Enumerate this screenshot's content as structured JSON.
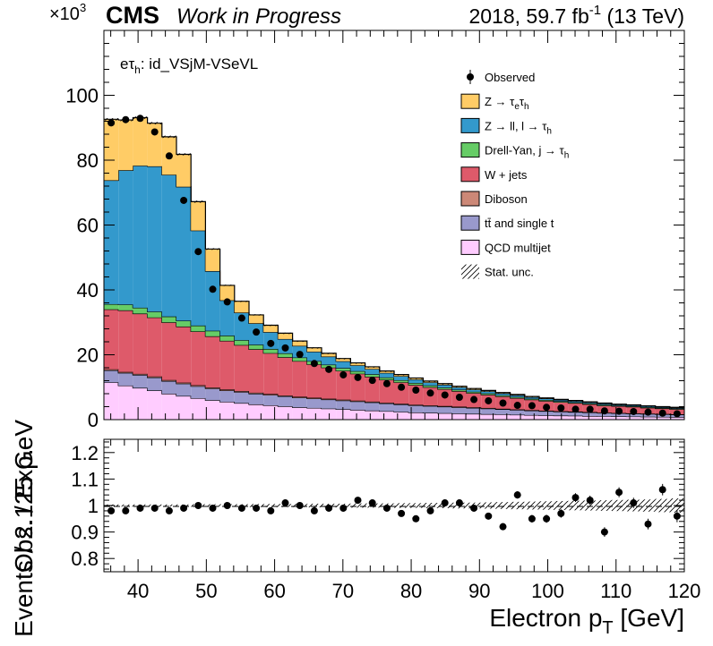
{
  "header": {
    "exponent_prefix": "×10",
    "exponent_power": "3",
    "experiment": "CMS",
    "status": "Work in Progress",
    "lumi_pre": "2018, 59.7 fb",
    "lumi_sup": "-1",
    "lumi_post": " (13 TeV)"
  },
  "channel": {
    "main": "eτ",
    "sub": "h",
    "rest": ": id_VSjM-VSeVL"
  },
  "colors": {
    "ztt": "#ffcc66",
    "zll": "#3399cc",
    "dy_jt": "#66cc66",
    "wjets": "#de5a6a",
    "diboson": "#cc8877",
    "top": "#9999cc",
    "qcd": "#ffccff"
  },
  "legend": [
    {
      "key": "observed",
      "label": "Observed"
    },
    {
      "key": "ztt",
      "label": "Z → τeτh"
    },
    {
      "key": "zll",
      "label": "Z → ll, l → τh"
    },
    {
      "key": "dy_jt",
      "label": "Drell-Yan, j → τh"
    },
    {
      "key": "wjets",
      "label": "W + jets"
    },
    {
      "key": "diboson",
      "label": "Diboson"
    },
    {
      "key": "top",
      "label": "tt̄ and single t"
    },
    {
      "key": "qcd",
      "label": "QCD multijet"
    },
    {
      "key": "stat",
      "label": "Stat. unc."
    }
  ],
  "chart_data": [
    {
      "type": "bar",
      "stacked": true,
      "ylabel": "Events / 2.125 GeV",
      "ylim": [
        0,
        120
      ],
      "y_unit_multiplier": "×10³",
      "y_ticks": [
        0,
        20,
        40,
        60,
        80,
        100
      ],
      "x_edges": [
        35,
        37.125,
        39.25,
        41.375,
        43.5,
        45.625,
        47.75,
        49.875,
        52,
        54.125,
        56.25,
        58.375,
        60.5,
        62.625,
        64.75,
        66.875,
        69,
        71.125,
        73.25,
        75.375,
        77.5,
        79.625,
        81.75,
        83.875,
        86,
        88.125,
        90.25,
        92.375,
        94.5,
        96.625,
        98.75,
        100.875,
        103,
        105.125,
        107.25,
        109.375,
        111.5,
        113.625,
        115.75,
        117.875,
        120
      ],
      "series": [
        {
          "key": "qcd",
          "name": "QCD multijet",
          "values": [
            11.5,
            10.5,
            9.8,
            9.0,
            8.0,
            7.3,
            6.6,
            6.0,
            5.5,
            5.1,
            4.7,
            4.4,
            4.1,
            3.8,
            3.6,
            3.4,
            3.2,
            3.0,
            2.8,
            2.6,
            2.4,
            2.2,
            2.1,
            2.0,
            1.9,
            1.8,
            1.7,
            1.6,
            1.5,
            1.4,
            1.3,
            1.25,
            1.2,
            1.1,
            1.05,
            1.0,
            0.95,
            0.9,
            0.85,
            0.8
          ]
        },
        {
          "key": "top",
          "name": "tt̄ and single t",
          "values": [
            3.7,
            3.9,
            4.0,
            4.0,
            3.9,
            3.8,
            3.7,
            3.6,
            3.5,
            3.4,
            3.3,
            3.2,
            3.1,
            3.0,
            2.9,
            2.8,
            2.7,
            2.6,
            2.5,
            2.4,
            2.3,
            2.2,
            2.1,
            2.0,
            1.9,
            1.8,
            1.7,
            1.6,
            1.5,
            1.4,
            1.3,
            1.2,
            1.15,
            1.1,
            1.0,
            0.95,
            0.9,
            0.85,
            0.8,
            0.75
          ]
        },
        {
          "key": "diboson",
          "name": "Diboson",
          "values": [
            0.3,
            0.3,
            0.3,
            0.3,
            0.3,
            0.3,
            0.3,
            0.3,
            0.3,
            0.3,
            0.3,
            0.3,
            0.25,
            0.25,
            0.25,
            0.25,
            0.25,
            0.25,
            0.25,
            0.2,
            0.2,
            0.2,
            0.2,
            0.2,
            0.2,
            0.2,
            0.2,
            0.15,
            0.15,
            0.15,
            0.15,
            0.15,
            0.15,
            0.15,
            0.1,
            0.1,
            0.1,
            0.1,
            0.1,
            0.1
          ]
        },
        {
          "key": "wjets",
          "name": "W + jets",
          "values": [
            18.5,
            19.0,
            18.6,
            18.2,
            17.8,
            17.3,
            16.6,
            15.8,
            15.0,
            14.2,
            13.4,
            12.6,
            11.8,
            11.0,
            10.3,
            9.6,
            8.9,
            8.3,
            7.7,
            7.1,
            6.6,
            6.1,
            5.6,
            5.2,
            4.8,
            4.4,
            4.1,
            3.8,
            3.5,
            3.2,
            3.0,
            2.8,
            2.6,
            2.4,
            2.2,
            2.1,
            2.0,
            1.8,
            1.7,
            1.6
          ]
        },
        {
          "key": "dy_jt",
          "name": "Drell-Yan, j → τh",
          "values": [
            1.6,
            1.8,
            1.8,
            1.8,
            1.8,
            1.8,
            1.8,
            1.7,
            1.6,
            1.5,
            1.4,
            1.3,
            1.2,
            1.1,
            1.0,
            0.9,
            0.85,
            0.8,
            0.75,
            0.7,
            0.65,
            0.6,
            0.55,
            0.5,
            0.45,
            0.4,
            0.4,
            0.35,
            0.35,
            0.3,
            0.3,
            0.3,
            0.25,
            0.25,
            0.25,
            0.2,
            0.2,
            0.2,
            0.2,
            0.2
          ]
        },
        {
          "key": "zll",
          "name": "Z → ll, l → τh",
          "values": [
            38.2,
            41.4,
            43.8,
            44.8,
            43.7,
            41.3,
            29.3,
            18.4,
            10.9,
            8.5,
            6.6,
            5.2,
            4.4,
            3.6,
            2.9,
            2.5,
            2.1,
            1.8,
            1.6,
            1.4,
            1.25,
            1.1,
            0.95,
            0.85,
            0.75,
            0.7,
            0.65,
            0.6,
            0.55,
            0.5,
            0.45,
            0.4,
            0.4,
            0.35,
            0.35,
            0.3,
            0.3,
            0.3,
            0.25,
            0.25
          ]
        },
        {
          "key": "ztt",
          "name": "Z → τeτh",
          "values": [
            18.8,
            15.5,
            14.8,
            13.3,
            11.7,
            10.0,
            8.9,
            6.8,
            4.6,
            3.5,
            2.6,
            2.1,
            1.8,
            1.5,
            1.2,
            1.0,
            0.85,
            0.75,
            0.7,
            0.6,
            0.5,
            0.45,
            0.4,
            0.35,
            0.3,
            0.3,
            0.25,
            0.25,
            0.2,
            0.2,
            0.2,
            0.15,
            0.15,
            0.15,
            0.15,
            0.1,
            0.1,
            0.1,
            0.1,
            0.1
          ]
        }
      ],
      "observed": [
        91.5,
        92.5,
        92.9,
        88.7,
        81.3,
        67.6,
        51.8,
        40.2,
        36.3,
        31.3,
        27.0,
        23.5,
        22.1,
        20.1,
        17.3,
        15.5,
        13.8,
        13.0,
        12.1,
        11.1,
        10.0,
        9.1,
        8.2,
        7.6,
        6.9,
        6.2,
        5.8,
        5.1,
        4.4,
        4.3,
        3.8,
        3.6,
        3.2,
        3.2,
        2.7,
        2.6,
        2.5,
        2.3,
        2.0,
        1.8
      ]
    },
    {
      "type": "scatter",
      "xlabel": "Electron pT [GeV]",
      "ylabel": "Obs. / Exp.",
      "xlim": [
        35,
        120
      ],
      "ylim": [
        0.75,
        1.25
      ],
      "x_ticks": [
        40,
        50,
        60,
        70,
        80,
        90,
        100,
        110,
        120
      ],
      "y_ticks": [
        0.8,
        0.9,
        1.0,
        1.1,
        1.2
      ],
      "ratio": [
        0.98,
        0.98,
        0.99,
        0.99,
        0.98,
        0.99,
        1.0,
        0.99,
        1.0,
        0.99,
        0.99,
        0.98,
        1.01,
        1.0,
        0.98,
        0.99,
        0.99,
        1.02,
        1.01,
        0.99,
        0.97,
        0.95,
        0.98,
        1.01,
        1.01,
        0.99,
        0.96,
        0.92,
        1.04,
        0.95,
        0.95,
        0.97,
        1.03,
        1.02,
        0.9,
        1.05,
        1.01,
        0.93,
        1.06,
        0.96
      ],
      "stat_unc": [
        0.004,
        0.004,
        0.004,
        0.004,
        0.004,
        0.004,
        0.005,
        0.005,
        0.005,
        0.005,
        0.006,
        0.006,
        0.006,
        0.006,
        0.007,
        0.007,
        0.007,
        0.008,
        0.008,
        0.008,
        0.009,
        0.009,
        0.01,
        0.01,
        0.011,
        0.011,
        0.012,
        0.013,
        0.014,
        0.015,
        0.016,
        0.017,
        0.018,
        0.019,
        0.02,
        0.021,
        0.022,
        0.023,
        0.025,
        0.027
      ]
    }
  ]
}
